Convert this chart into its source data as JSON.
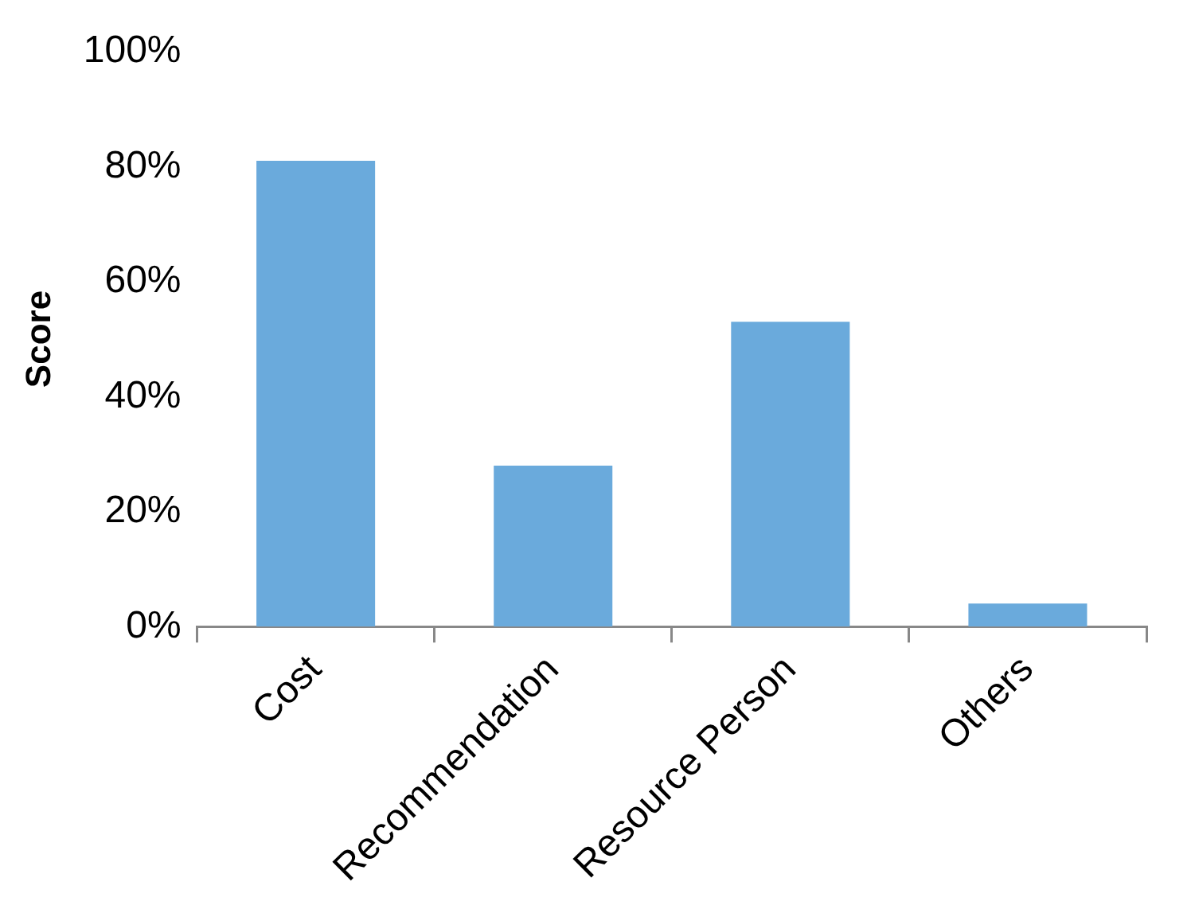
{
  "chart_data": {
    "type": "bar",
    "ylabel": "Score",
    "categories": [
      "Cost",
      "Recommendation",
      "Resource Person",
      "Others"
    ],
    "values": [
      81,
      28,
      53,
      4
    ],
    "color": "#6aaadc",
    "ylim": [
      0,
      100
    ],
    "yticks": [
      {
        "value": 0,
        "label": "0%"
      },
      {
        "value": 20,
        "label": "20%"
      },
      {
        "value": 40,
        "label": "40%"
      },
      {
        "value": 60,
        "label": "60%"
      },
      {
        "value": 80,
        "label": "80%"
      },
      {
        "value": 100,
        "label": "100%"
      }
    ],
    "grid": false,
    "legend": false
  }
}
